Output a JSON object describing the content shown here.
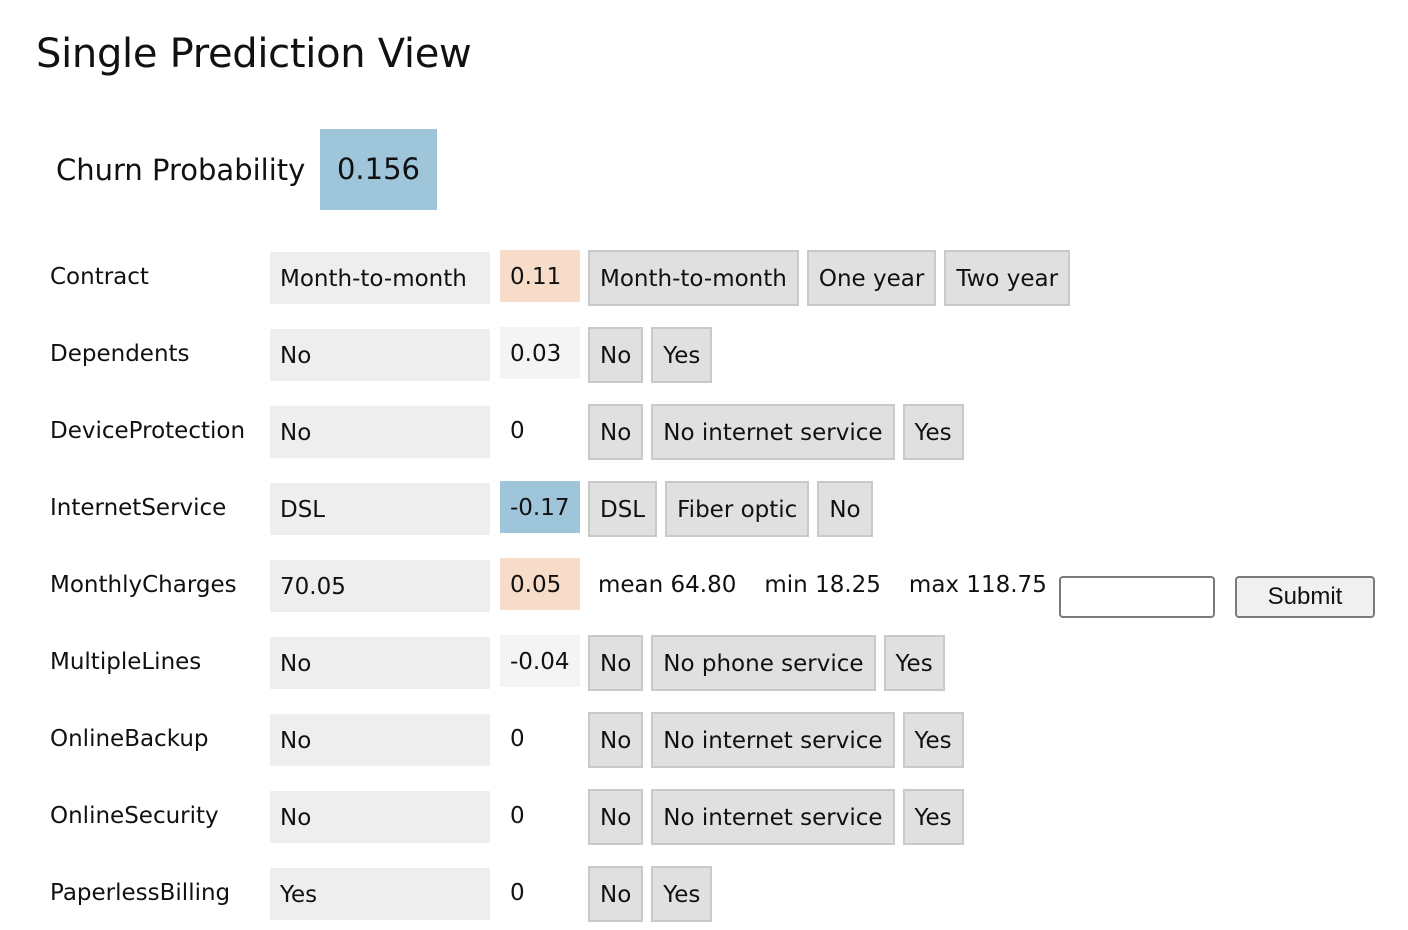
{
  "title": "Single Prediction View",
  "churn": {
    "label": "Churn Probability",
    "value": "0.156"
  },
  "colors": {
    "positive_contribution": "#f6dcc9",
    "negative_contribution": "#9fc5db",
    "neutral_contribution": "#f4f4f4",
    "value_cell": "#eeeeee",
    "option_button": "#e0e0e0"
  },
  "features": [
    {
      "name": "Contract",
      "value": "Month-to-month",
      "contribution": "0.11",
      "contribution_sign": "positive",
      "options": [
        "Month-to-month",
        "One year",
        "Two year"
      ]
    },
    {
      "name": "Dependents",
      "value": "No",
      "contribution": "0.03",
      "contribution_sign": "neutral",
      "options": [
        "No",
        "Yes"
      ]
    },
    {
      "name": "DeviceProtection",
      "value": "No",
      "contribution": "0",
      "contribution_sign": "none",
      "options": [
        "No",
        "No internet service",
        "Yes"
      ]
    },
    {
      "name": "InternetService",
      "value": "DSL",
      "contribution": "-0.17",
      "contribution_sign": "negative",
      "options": [
        "DSL",
        "Fiber optic",
        "No"
      ]
    },
    {
      "name": "MonthlyCharges",
      "value": "70.05",
      "contribution": "0.05",
      "contribution_sign": "positive",
      "stats": {
        "mean": "mean 64.80",
        "min": "min 18.25",
        "max": "max 118.75"
      },
      "input_value": "",
      "submit_label": "Submit"
    },
    {
      "name": "MultipleLines",
      "value": "No",
      "contribution": "-0.04",
      "contribution_sign": "neutral",
      "options": [
        "No",
        "No phone service",
        "Yes"
      ]
    },
    {
      "name": "OnlineBackup",
      "value": "No",
      "contribution": "0",
      "contribution_sign": "none",
      "options": [
        "No",
        "No internet service",
        "Yes"
      ]
    },
    {
      "name": "OnlineSecurity",
      "value": "No",
      "contribution": "0",
      "contribution_sign": "none",
      "options": [
        "No",
        "No internet service",
        "Yes"
      ]
    },
    {
      "name": "PaperlessBilling",
      "value": "Yes",
      "contribution": "0",
      "contribution_sign": "none",
      "options": [
        "No",
        "Yes"
      ]
    }
  ]
}
